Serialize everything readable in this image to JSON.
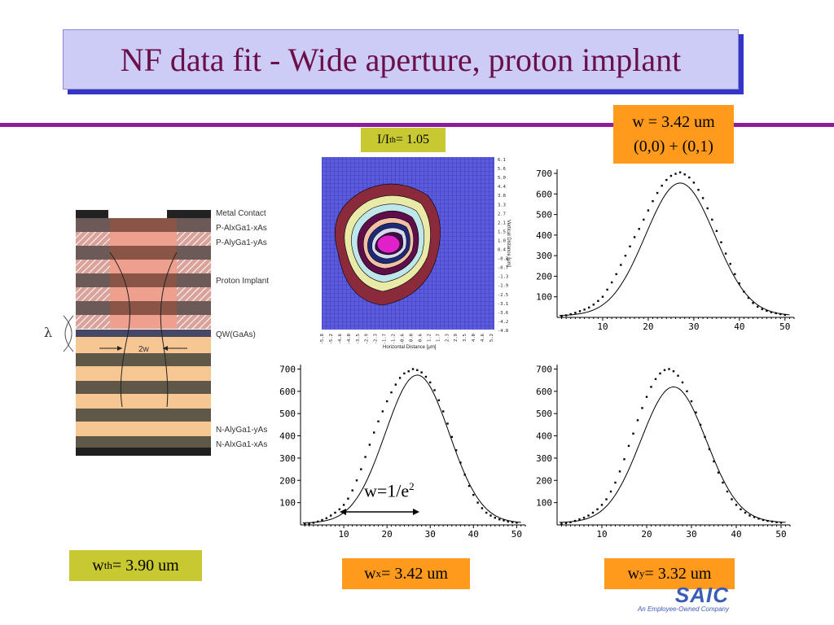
{
  "slide": {
    "title": "NF data fit - Wide aperture, proton implant",
    "colors": {
      "title_text": "#6b0f4a",
      "title_bg": "#ccccf7",
      "rule": "#8e1a9c",
      "orange_label": "#ff9a1c",
      "olive_label": "#c8c832"
    }
  },
  "labels": {
    "i_ith": {
      "base": "I/I",
      "sub": "th",
      "rest": " = 1.05"
    },
    "w_top": {
      "line1": "w = 3.42 um",
      "line2": "(0,0) + (0,1)"
    },
    "w_th": {
      "base": "w",
      "sub": "th",
      "rest": " = 3.90 um"
    },
    "w_x": {
      "base": "w",
      "sub": "x",
      "rest": " = 3.42 um"
    },
    "w_y": {
      "base": "w",
      "sub": "y",
      "rest": " = 3.32 um"
    },
    "w_e": {
      "base": "w=1/e",
      "sup": "2"
    }
  },
  "layer_diagram": {
    "labels": [
      "Metal Contact",
      "P-AlxGa1-xAs",
      "P-AlyGa1-yAs",
      "Proton Implant",
      "QW(GaAs)",
      "N-AlyGa1-yAs",
      "N-AlxGa1-xAs"
    ],
    "lambda": "λ",
    "two_w": "2w"
  },
  "contour": {
    "x_label": "Horizontal Distance [μm]",
    "y_label": "Vertical Distance [μm]",
    "x_ticks": [
      "-5.8",
      "-5.2",
      "-4.6",
      "-4.0",
      "-3.5",
      "-2.9",
      "-2.3",
      "-1.7",
      "-1.2",
      "-0.6",
      "0.0",
      "0.6",
      "1.2",
      "1.7",
      "2.3",
      "2.9",
      "3.5",
      "4.0",
      "4.6",
      "5.2"
    ],
    "y_ticks": [
      "6.1",
      "5.6",
      "5.0",
      "4.4",
      "3.8",
      "3.3",
      "2.7",
      "2.1",
      "1.5",
      "1.0",
      "0.4",
      "-0.2",
      "-0.7",
      "-1.3",
      "-1.9",
      "-2.5",
      "-3.1",
      "-3.6",
      "-4.2",
      "-4.8"
    ]
  },
  "chart_data": [
    {
      "type": "scatter",
      "title": "",
      "xlim": [
        0,
        52
      ],
      "ylim": [
        0,
        720
      ],
      "x_ticks": [
        10,
        20,
        30,
        40,
        50
      ],
      "y_ticks": [
        100,
        200,
        300,
        400,
        500,
        600,
        700
      ],
      "fit": {
        "amplitude": 645,
        "center": 27,
        "sigma": 7.6,
        "offset": 8
      },
      "points": [
        [
          1,
          5
        ],
        [
          2,
          10
        ],
        [
          3,
          15
        ],
        [
          4,
          22
        ],
        [
          5,
          30
        ],
        [
          6,
          38
        ],
        [
          7,
          48
        ],
        [
          8,
          62
        ],
        [
          9,
          80
        ],
        [
          10,
          100
        ],
        [
          11,
          135
        ],
        [
          12,
          170
        ],
        [
          13,
          210
        ],
        [
          14,
          255
        ],
        [
          15,
          300
        ],
        [
          16,
          345
        ],
        [
          17,
          390
        ],
        [
          18,
          430
        ],
        [
          19,
          475
        ],
        [
          20,
          520
        ],
        [
          21,
          565
        ],
        [
          22,
          605
        ],
        [
          23,
          640
        ],
        [
          24,
          668
        ],
        [
          25,
          688
        ],
        [
          26,
          698
        ],
        [
          27,
          705
        ],
        [
          28,
          695
        ],
        [
          29,
          680
        ],
        [
          30,
          655
        ],
        [
          31,
          620
        ],
        [
          32,
          580
        ],
        [
          33,
          530
        ],
        [
          34,
          475
        ],
        [
          35,
          420
        ],
        [
          36,
          365
        ],
        [
          37,
          310
        ],
        [
          38,
          260
        ],
        [
          39,
          210
        ],
        [
          40,
          165
        ],
        [
          41,
          125
        ],
        [
          42,
          95
        ],
        [
          43,
          70
        ],
        [
          44,
          52
        ],
        [
          45,
          40
        ],
        [
          46,
          32
        ],
        [
          47,
          25
        ],
        [
          48,
          20
        ],
        [
          49,
          16
        ],
        [
          50,
          12
        ]
      ]
    },
    {
      "type": "scatter",
      "title": "",
      "xlim": [
        0,
        52
      ],
      "ylim": [
        0,
        720
      ],
      "x_ticks": [
        10,
        20,
        30,
        40,
        50
      ],
      "y_ticks": [
        100,
        200,
        300,
        400,
        500,
        600,
        700
      ],
      "fit": {
        "amplitude": 665,
        "center": 27,
        "sigma": 7.4,
        "offset": 8
      },
      "points": [
        [
          1,
          3
        ],
        [
          2,
          6
        ],
        [
          3,
          10
        ],
        [
          4,
          15
        ],
        [
          5,
          22
        ],
        [
          6,
          30
        ],
        [
          7,
          42
        ],
        [
          8,
          55
        ],
        [
          9,
          70
        ],
        [
          10,
          90
        ],
        [
          11,
          118
        ],
        [
          12,
          155
        ],
        [
          13,
          200
        ],
        [
          14,
          250
        ],
        [
          15,
          305
        ],
        [
          16,
          360
        ],
        [
          17,
          415
        ],
        [
          18,
          465
        ],
        [
          19,
          510
        ],
        [
          20,
          555
        ],
        [
          21,
          595
        ],
        [
          22,
          630
        ],
        [
          23,
          660
        ],
        [
          24,
          680
        ],
        [
          25,
          690
        ],
        [
          26,
          700
        ],
        [
          27,
          695
        ],
        [
          28,
          685
        ],
        [
          29,
          665
        ],
        [
          30,
          640
        ],
        [
          31,
          605
        ],
        [
          32,
          560
        ],
        [
          33,
          510
        ],
        [
          34,
          455
        ],
        [
          35,
          395
        ],
        [
          36,
          335
        ],
        [
          37,
          280
        ],
        [
          38,
          225
        ],
        [
          39,
          175
        ],
        [
          40,
          135
        ],
        [
          41,
          100
        ],
        [
          42,
          75
        ],
        [
          43,
          55
        ],
        [
          44,
          42
        ],
        [
          45,
          32
        ],
        [
          46,
          25
        ],
        [
          47,
          20
        ],
        [
          48,
          15
        ],
        [
          49,
          12
        ],
        [
          50,
          10
        ]
      ]
    },
    {
      "type": "scatter",
      "title": "",
      "xlim": [
        0,
        52
      ],
      "ylim": [
        0,
        720
      ],
      "x_ticks": [
        10,
        20,
        30,
        40,
        50
      ],
      "y_ticks": [
        100,
        200,
        300,
        400,
        500,
        600,
        700
      ],
      "fit": {
        "amplitude": 610,
        "center": 26,
        "sigma": 7.3,
        "offset": 10
      },
      "points": [
        [
          1,
          5
        ],
        [
          2,
          8
        ],
        [
          3,
          12
        ],
        [
          4,
          18
        ],
        [
          5,
          25
        ],
        [
          6,
          32
        ],
        [
          7,
          42
        ],
        [
          8,
          55
        ],
        [
          9,
          70
        ],
        [
          10,
          90
        ],
        [
          11,
          115
        ],
        [
          12,
          150
        ],
        [
          13,
          190
        ],
        [
          14,
          240
        ],
        [
          15,
          295
        ],
        [
          16,
          355
        ],
        [
          17,
          410
        ],
        [
          18,
          470
        ],
        [
          19,
          525
        ],
        [
          20,
          575
        ],
        [
          21,
          620
        ],
        [
          22,
          655
        ],
        [
          23,
          680
        ],
        [
          24,
          695
        ],
        [
          25,
          700
        ],
        [
          26,
          690
        ],
        [
          27,
          670
        ],
        [
          28,
          640
        ],
        [
          29,
          600
        ],
        [
          30,
          555
        ],
        [
          31,
          505
        ],
        [
          32,
          450
        ],
        [
          33,
          395
        ],
        [
          34,
          340
        ],
        [
          35,
          285
        ],
        [
          36,
          235
        ],
        [
          37,
          190
        ],
        [
          38,
          150
        ],
        [
          39,
          115
        ],
        [
          40,
          90
        ],
        [
          41,
          70
        ],
        [
          42,
          55
        ],
        [
          43,
          42
        ],
        [
          44,
          35
        ],
        [
          45,
          28
        ],
        [
          46,
          22
        ],
        [
          47,
          18
        ],
        [
          48,
          15
        ],
        [
          49,
          12
        ],
        [
          50,
          10
        ]
      ]
    }
  ],
  "logo": {
    "text": "SAIC",
    "tagline": "An Employee-Owned Company"
  }
}
